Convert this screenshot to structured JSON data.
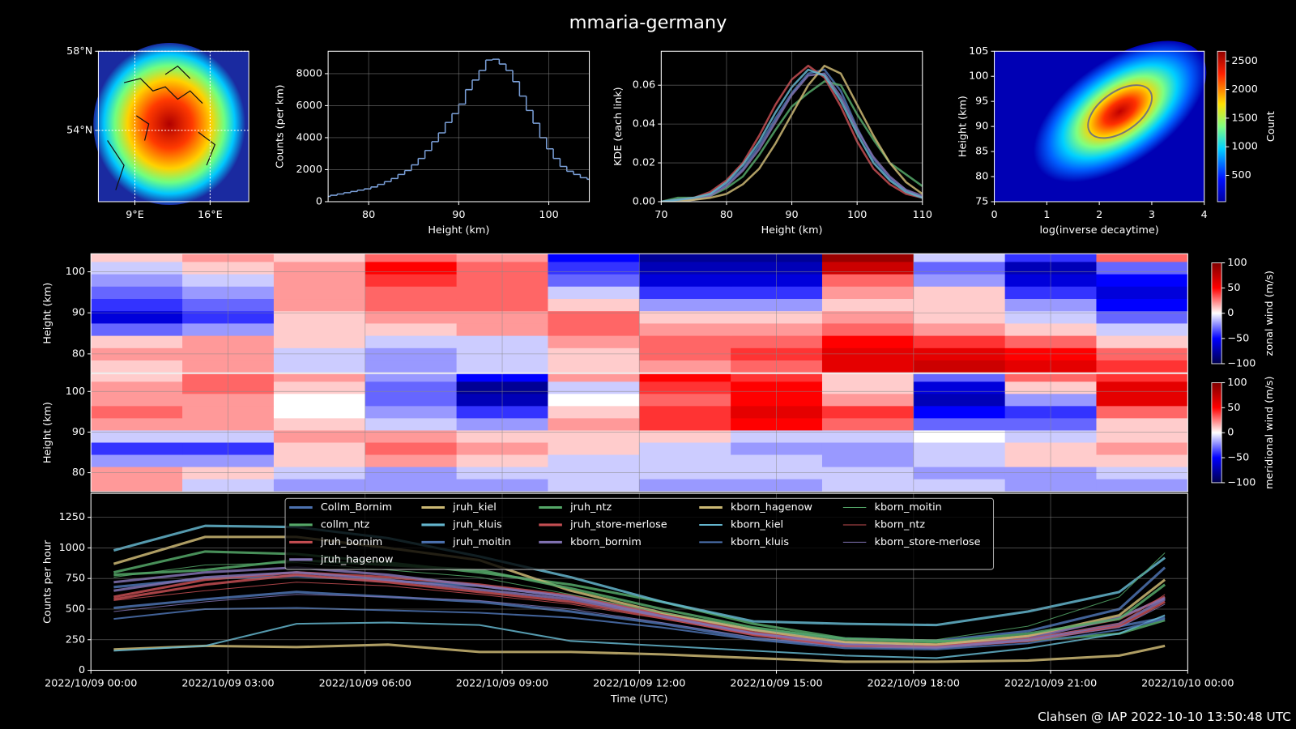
{
  "title": "mmaria-germany",
  "footer": "Clahsen @ IAP 2022-10-10 13:50:48 UTC",
  "chart_data": [
    {
      "type": "map",
      "xlim": [
        5.6,
        19.6
      ],
      "ylim": [
        50.4,
        58
      ],
      "xticks": [
        {
          "value": 9,
          "label": "9°E"
        },
        {
          "value": 16,
          "label": "16°E"
        }
      ],
      "yticks": [
        {
          "value": 58,
          "label": "58°N"
        },
        {
          "value": 54,
          "label": "54°N"
        }
      ],
      "grid": true
    },
    {
      "type": "histogram",
      "xlabel": "Height (km)",
      "ylabel": "Counts (per km)",
      "color": "#7a9fd8",
      "bins": [
        75,
        75.75,
        76.5,
        77.25,
        78,
        78.75,
        79.5,
        80.25,
        81,
        81.75,
        82.5,
        83.25,
        84,
        84.75,
        85.5,
        86.25,
        87,
        87.75,
        88.5,
        89.25,
        90,
        90.75,
        91.5,
        92.25,
        93,
        93.75,
        94.5,
        95.25,
        96,
        96.75,
        97.5,
        98.25,
        99,
        99.75,
        100.5,
        101.25,
        102,
        102.75,
        103.5,
        104.25,
        105
      ],
      "counts": [
        330,
        400,
        480,
        560,
        640,
        720,
        800,
        920,
        1080,
        1250,
        1450,
        1700,
        1950,
        2300,
        2700,
        3200,
        3750,
        4300,
        4950,
        5500,
        6100,
        7000,
        7600,
        8200,
        8850,
        8900,
        8600,
        8200,
        7500,
        6600,
        5700,
        4900,
        4000,
        3300,
        2700,
        2200,
        1900,
        1700,
        1500,
        1400
      ],
      "xlim": [
        75.5,
        104.5
      ],
      "ylim": [
        0,
        9400
      ],
      "xticks": [
        80,
        90,
        100
      ],
      "yticks": [
        0,
        2000,
        4000,
        6000,
        8000
      ],
      "grid": true
    },
    {
      "type": "line",
      "xlabel": "Height (km)",
      "ylabel": "KDE (each link)",
      "x": [
        70,
        72.5,
        75,
        77.5,
        80,
        82.5,
        85,
        87.5,
        90,
        92.5,
        95,
        97.5,
        100,
        102.5,
        105,
        107.5,
        110
      ],
      "series": [
        {
          "color": "#4c72b0",
          "values": [
            0,
            0.001,
            0.002,
            0.004,
            0.009,
            0.017,
            0.029,
            0.043,
            0.056,
            0.066,
            0.068,
            0.057,
            0.038,
            0.022,
            0.012,
            0.006,
            0.002
          ]
        },
        {
          "color": "#55a868",
          "values": [
            0,
            0.002,
            0.002,
            0.003,
            0.007,
            0.013,
            0.024,
            0.037,
            0.049,
            0.056,
            0.062,
            0.06,
            0.045,
            0.032,
            0.02,
            0.014,
            0.008
          ]
        },
        {
          "color": "#c44e52",
          "values": [
            0,
            0.001,
            0.002,
            0.005,
            0.011,
            0.02,
            0.034,
            0.05,
            0.063,
            0.07,
            0.064,
            0.049,
            0.031,
            0.017,
            0.009,
            0.004,
            0.002
          ]
        },
        {
          "color": "#8172b2",
          "values": [
            0,
            0.001,
            0.001,
            0.003,
            0.008,
            0.016,
            0.027,
            0.041,
            0.055,
            0.065,
            0.066,
            0.054,
            0.037,
            0.023,
            0.013,
            0.006,
            0.003
          ]
        },
        {
          "color": "#ccb974",
          "values": [
            0,
            0,
            0.001,
            0.002,
            0.004,
            0.009,
            0.017,
            0.03,
            0.045,
            0.06,
            0.07,
            0.066,
            0.05,
            0.034,
            0.02,
            0.01,
            0.004
          ]
        },
        {
          "color": "#64b5cd",
          "values": [
            0,
            0.001,
            0.002,
            0.004,
            0.01,
            0.019,
            0.031,
            0.046,
            0.059,
            0.068,
            0.065,
            0.052,
            0.035,
            0.02,
            0.011,
            0.005,
            0.002
          ]
        }
      ],
      "xlim": [
        70,
        110
      ],
      "ylim": [
        0,
        0.0775
      ],
      "xticks": [
        70,
        80,
        90,
        100,
        110
      ],
      "yticks": [
        {
          "value": 0,
          "label": "0.00"
        },
        {
          "value": 0.02,
          "label": "0.02"
        },
        {
          "value": 0.04,
          "label": "0.04"
        },
        {
          "value": 0.06,
          "label": "0.06"
        }
      ],
      "grid": true
    },
    {
      "type": "hist2d",
      "xlabel": "log(inverse decaytime)",
      "ylabel": "Height (km)",
      "colorbar_label": "Count",
      "colormap": "jet",
      "xlim": [
        0,
        4
      ],
      "ylim": [
        75,
        105
      ],
      "xticks": [
        0,
        1,
        2,
        3,
        4
      ],
      "yticks": [
        75,
        80,
        85,
        90,
        95,
        100,
        105
      ],
      "clim": [
        40,
        2670
      ],
      "cticks": [
        500,
        1000,
        1500,
        2000,
        2500
      ]
    },
    {
      "type": "heatmap",
      "ylabel": "Height (km)",
      "colorbar_label": "zonal wind (m/s)",
      "colormap": "seismic",
      "x": [
        "2022/10/09 01:00",
        "2022/10/09 03:00",
        "2022/10/09 05:00",
        "2022/10/09 07:00",
        "2022/10/09 09:00",
        "2022/10/09 11:00",
        "2022/10/09 13:00",
        "2022/10/09 15:00",
        "2022/10/09 17:00",
        "2022/10/09 19:00",
        "2022/10/09 21:00",
        "2022/10/09 23:00"
      ],
      "y": [
        77,
        80,
        83,
        86,
        89,
        92,
        95,
        98,
        101,
        104
      ],
      "z": [
        [
          10,
          20,
          -10,
          -20,
          -10,
          10,
          20,
          30,
          60,
          70,
          60,
          40
        ],
        [
          20,
          20,
          -10,
          -20,
          -10,
          10,
          30,
          40,
          60,
          60,
          50,
          30
        ],
        [
          10,
          20,
          10,
          -10,
          -10,
          20,
          30,
          30,
          50,
          40,
          30,
          10
        ],
        [
          -30,
          -20,
          10,
          10,
          20,
          30,
          20,
          20,
          30,
          20,
          10,
          -10
        ],
        [
          -60,
          -40,
          10,
          20,
          20,
          30,
          10,
          10,
          20,
          10,
          -10,
          -30
        ],
        [
          -40,
          -30,
          20,
          30,
          30,
          10,
          -20,
          -20,
          10,
          10,
          -20,
          -50
        ],
        [
          -30,
          -20,
          20,
          30,
          30,
          -10,
          -40,
          -40,
          20,
          10,
          -40,
          -60
        ],
        [
          -20,
          -10,
          20,
          40,
          30,
          -30,
          -60,
          -60,
          30,
          -20,
          -60,
          -50
        ],
        [
          -10,
          10,
          20,
          50,
          30,
          -40,
          -70,
          -70,
          70,
          -30,
          -70,
          -30
        ],
        [
          10,
          20,
          10,
          30,
          20,
          -50,
          -80,
          -80,
          90,
          -10,
          -40,
          30
        ]
      ],
      "xlim": [
        "2022/10/09 00:00",
        "2022/10/10 00:00"
      ],
      "ylim": [
        75.4,
        104.4
      ],
      "yticks": [
        80,
        90,
        100
      ],
      "grid": true,
      "clim": [
        -100,
        100
      ],
      "cticks": [
        {
          "value": -100,
          "label": "−100"
        },
        {
          "value": -50,
          "label": "−50"
        },
        0,
        50,
        100
      ]
    },
    {
      "type": "heatmap",
      "ylabel": "Height (km)",
      "colorbar_label": "meridional wind (m/s)",
      "colormap": "seismic",
      "x": [
        "2022/10/09 01:00",
        "2022/10/09 03:00",
        "2022/10/09 05:00",
        "2022/10/09 07:00",
        "2022/10/09 09:00",
        "2022/10/09 11:00",
        "2022/10/09 13:00",
        "2022/10/09 15:00",
        "2022/10/09 17:00",
        "2022/10/09 19:00",
        "2022/10/09 21:00",
        "2022/10/09 23:00"
      ],
      "y": [
        77,
        80,
        83,
        86,
        89,
        92,
        95,
        98,
        101,
        104
      ],
      "z": [
        [
          20,
          -10,
          -20,
          -20,
          -20,
          -10,
          -20,
          -20,
          -10,
          -10,
          -20,
          -20
        ],
        [
          20,
          10,
          -10,
          -20,
          -10,
          -10,
          -10,
          -10,
          -10,
          -20,
          -20,
          -10
        ],
        [
          -20,
          -20,
          10,
          20,
          10,
          -10,
          -10,
          -10,
          -20,
          -10,
          10,
          10
        ],
        [
          -40,
          -40,
          10,
          30,
          20,
          10,
          -10,
          -20,
          -20,
          -10,
          10,
          20
        ],
        [
          -10,
          -10,
          20,
          20,
          10,
          10,
          10,
          -10,
          -10,
          0,
          -10,
          10
        ],
        [
          20,
          20,
          10,
          -10,
          -20,
          20,
          40,
          50,
          30,
          -30,
          -30,
          10
        ],
        [
          30,
          20,
          0,
          -20,
          -40,
          10,
          40,
          60,
          40,
          -50,
          -40,
          30
        ],
        [
          20,
          20,
          0,
          -30,
          -70,
          0,
          30,
          50,
          20,
          -70,
          -20,
          60
        ],
        [
          20,
          30,
          10,
          -30,
          -80,
          -10,
          40,
          50,
          10,
          -60,
          10,
          60
        ],
        [
          10,
          30,
          20,
          -20,
          -50,
          20,
          50,
          40,
          10,
          -30,
          30,
          40
        ]
      ],
      "xlim": [
        "2022/10/09 00:00",
        "2022/10/10 00:00"
      ],
      "ylim": [
        75.3,
        104.4
      ],
      "yticks": [
        80,
        90,
        100
      ],
      "grid": true,
      "clim": [
        -100,
        100
      ],
      "cticks": [
        {
          "value": -100,
          "label": "−100"
        },
        {
          "value": -50,
          "label": "−50"
        },
        0,
        50,
        100
      ]
    },
    {
      "type": "line",
      "xlabel": "Time (UTC)",
      "ylabel": "Counts per hour",
      "legend": "upper center",
      "x": [
        "2022/10/09 00:30",
        "2022/10/09 02:30",
        "2022/10/09 04:30",
        "2022/10/09 06:30",
        "2022/10/09 08:30",
        "2022/10/09 10:30",
        "2022/10/09 12:30",
        "2022/10/09 14:30",
        "2022/10/09 16:30",
        "2022/10/09 18:30",
        "2022/10/09 20:30",
        "2022/10/09 22:30",
        "2022/10/09 23:30"
      ],
      "series": [
        {
          "name": "Collm_Bornim",
          "color": "#4c72b0",
          "values": [
            680,
            750,
            770,
            730,
            690,
            600,
            460,
            330,
            260,
            240,
            320,
            500,
            840
          ]
        },
        {
          "name": "collm_ntz",
          "color": "#55a868",
          "values": [
            800,
            970,
            950,
            880,
            800,
            700,
            560,
            380,
            260,
            240,
            240,
            300,
            410
          ]
        },
        {
          "name": "jruh_bornim",
          "color": "#c44e52",
          "values": [
            600,
            740,
            800,
            760,
            700,
            610,
            460,
            310,
            230,
            210,
            280,
            420,
            600
          ]
        },
        {
          "name": "jruh_hagenow",
          "color": "#8172b2",
          "values": [
            720,
            800,
            840,
            780,
            690,
            600,
            440,
            300,
            220,
            200,
            260,
            430,
            590
          ]
        },
        {
          "name": "jruh_kiel",
          "color": "#ccb974",
          "values": [
            870,
            1090,
            1090,
            1000,
            900,
            650,
            470,
            330,
            230,
            210,
            280,
            450,
            740
          ]
        },
        {
          "name": "jruh_kluis",
          "color": "#64b5cd",
          "values": [
            980,
            1180,
            1170,
            1080,
            930,
            760,
            560,
            400,
            380,
            370,
            480,
            640,
            920
          ]
        },
        {
          "name": "jruh_moitin",
          "color": "#4c72b0",
          "values": [
            510,
            580,
            640,
            600,
            560,
            480,
            380,
            260,
            200,
            180,
            250,
            360,
            430
          ]
        },
        {
          "name": "jruh_ntz",
          "color": "#55a868",
          "values": [
            780,
            820,
            900,
            860,
            820,
            670,
            500,
            350,
            250,
            230,
            300,
            420,
            700
          ]
        },
        {
          "name": "jruh_store-merlose",
          "color": "#c44e52",
          "values": [
            580,
            700,
            780,
            720,
            640,
            560,
            430,
            290,
            200,
            190,
            240,
            360,
            560
          ]
        },
        {
          "name": "kborn_bornim",
          "color": "#8172b2",
          "values": [
            650,
            760,
            800,
            740,
            660,
            580,
            440,
            300,
            210,
            190,
            250,
            380,
            580
          ]
        },
        {
          "name": "kborn_hagenow",
          "color": "#ccb974",
          "values": [
            170,
            200,
            190,
            210,
            150,
            150,
            130,
            100,
            70,
            70,
            80,
            120,
            200
          ]
        },
        {
          "name": "kborn_kiel",
          "color": "#64b5cd",
          "values": [
            160,
            200,
            380,
            390,
            370,
            240,
            200,
            160,
            120,
            100,
            180,
            300,
            450
          ]
        },
        {
          "name": "kborn_kluis",
          "color": "#4c72b0",
          "values": [
            420,
            500,
            510,
            490,
            470,
            430,
            350,
            250,
            180,
            170,
            220,
            330,
            420
          ]
        },
        {
          "name": "kborn_moitin",
          "color": "#55a868",
          "values": [
            760,
            860,
            880,
            820,
            760,
            620,
            470,
            350,
            260,
            250,
            360,
            600,
            960
          ]
        },
        {
          "name": "kborn_ntz",
          "color": "#c44e52",
          "values": [
            570,
            650,
            720,
            690,
            620,
            540,
            420,
            290,
            200,
            200,
            260,
            380,
            620
          ]
        },
        {
          "name": "kborn_store-merlose",
          "color": "#8172b2",
          "values": [
            480,
            560,
            620,
            600,
            570,
            500,
            390,
            270,
            190,
            180,
            240,
            350,
            540
          ]
        }
      ],
      "xlim": [
        "2022/10/09 00:00",
        "2022/10/10 00:00"
      ],
      "ylim": [
        0,
        1445
      ],
      "xticks": [
        "2022/10/09 00:00",
        "2022/10/09 03:00",
        "2022/10/09 06:00",
        "2022/10/09 09:00",
        "2022/10/09 12:00",
        "2022/10/09 15:00",
        "2022/10/09 18:00",
        "2022/10/09 21:00",
        "2022/10/10 00:00"
      ],
      "yticks": [
        0,
        250,
        500,
        750,
        1000,
        1250
      ],
      "grid": true
    }
  ]
}
